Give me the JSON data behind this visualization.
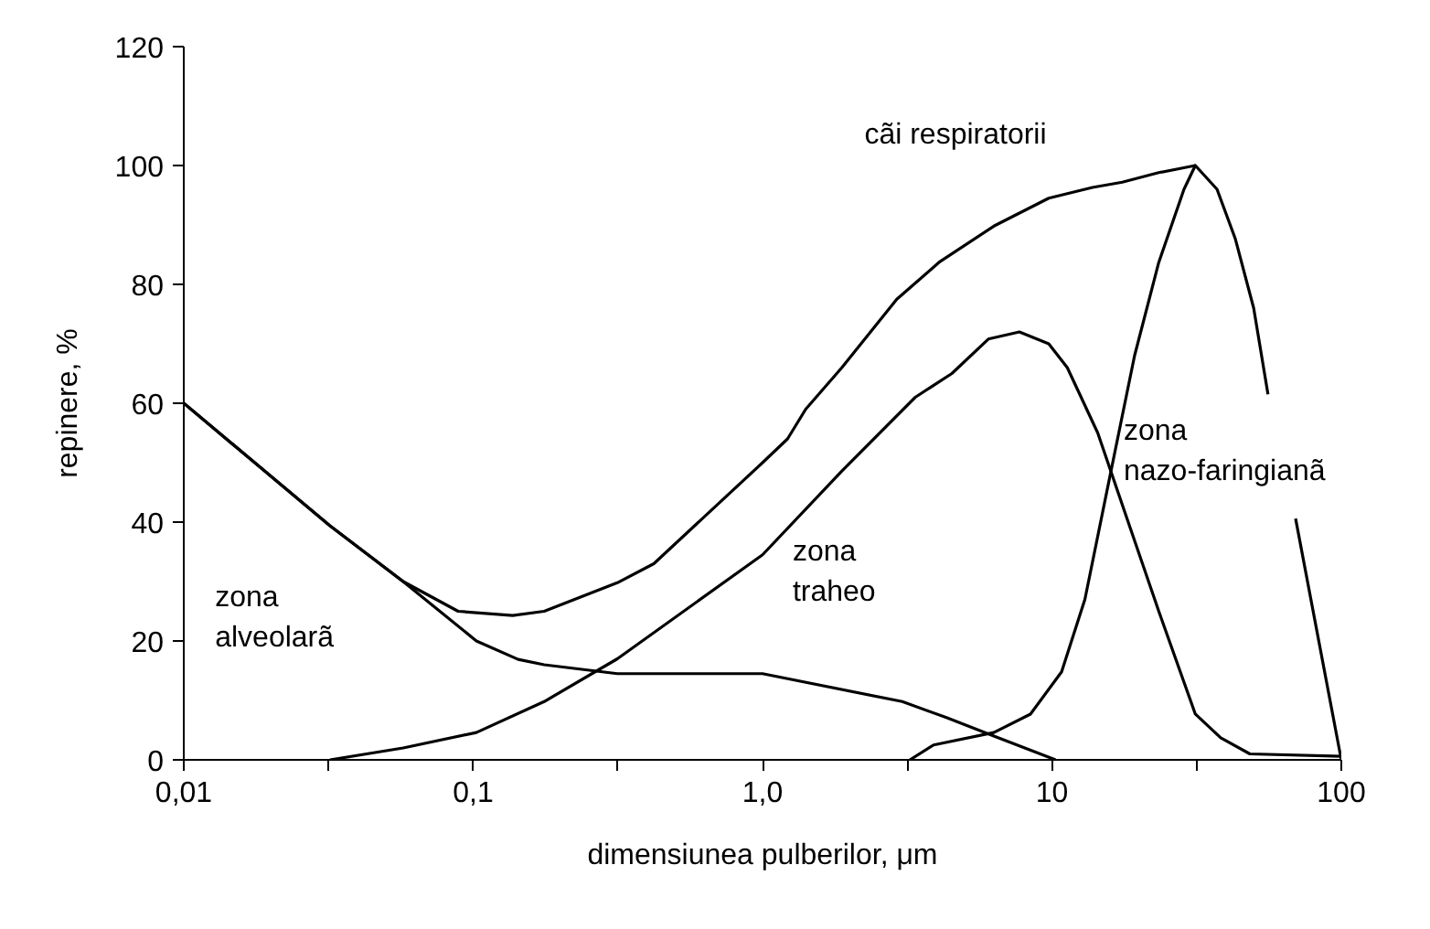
{
  "chart_data": {
    "type": "line",
    "xlabel": "dimensiunea pulberilor, μm",
    "ylabel": "repinere, %",
    "log": "x",
    "xlim": [
      0.01,
      100
    ],
    "ylim": [
      0,
      120
    ],
    "xticks": [
      {
        "value": 0.01,
        "label": "0,01"
      },
      {
        "value": 0.0316,
        "label": null
      },
      {
        "value": 0.1,
        "label": "0,1"
      },
      {
        "value": 0.316,
        "label": null
      },
      {
        "value": 1,
        "label": "1,0"
      },
      {
        "value": 3.16,
        "label": null
      },
      10,
      {
        "value": 31.6,
        "label": null
      },
      100
    ],
    "yticks": [
      0,
      20,
      40,
      60,
      80,
      100,
      120
    ],
    "grid": false,
    "legend": false,
    "marker": "none",
    "line_style": "solid",
    "series": [
      {
        "name": "cãi respiratorii",
        "color": "#000000",
        "x": [
          0.01,
          0.032,
          0.0573,
          0.0887,
          0.137,
          0.176,
          0.315,
          0.421,
          1.0,
          1.22,
          1.41,
          1.88,
          2.91,
          4.07,
          6.3,
          9.75,
          13.8,
          17.5,
          23.4,
          31.3
        ],
        "values": [
          60,
          39.4,
          30,
          25,
          24.3,
          25,
          29.8,
          33,
          50,
          54,
          59,
          66,
          77.5,
          83.7,
          89.8,
          94.5,
          96.3,
          97.2,
          98.8,
          100
        ]
      },
      {
        "name": "zona\nnazo-faringianã",
        "color": "#000000",
        "x": [
          3.23,
          3.9,
          6.3,
          8.43,
          10.8,
          13.0,
          16.0,
          19.3,
          23.4,
          28.6,
          31.3,
          37.2,
          43.0,
          49.8,
          55.8,
          62,
          69.5,
          100
        ],
        "values": [
          0,
          2.5,
          4.6,
          7.7,
          14.8,
          27,
          48.6,
          68,
          83.7,
          96,
          100,
          96,
          87.7,
          76,
          61.5,
          null,
          40.6,
          0
        ]
      },
      {
        "name": "zona\ntraheo",
        "color": "#000000",
        "x": [
          0.032,
          0.0573,
          0.1026,
          0.176,
          0.315,
          1.0,
          1.88,
          3.37,
          4.51,
          6.03,
          7.72,
          9.75,
          11.3,
          14.4,
          18.5,
          23.4,
          31.3,
          38.3,
          48.3,
          100
        ],
        "values": [
          0,
          2,
          4.6,
          9.8,
          17,
          34.5,
          48.6,
          61,
          65,
          70.8,
          72,
          70,
          66,
          55,
          39.5,
          25,
          7.7,
          3.7,
          1,
          0.6
        ]
      },
      {
        "name": "zona\nalveolarã",
        "color": "#000000",
        "x": [
          0.01,
          0.032,
          0.0573,
          0.1026,
          0.143,
          0.176,
          0.315,
          1.0,
          3.04,
          4.32,
          6.3,
          10.3
        ],
        "values": [
          60,
          39.4,
          30,
          20,
          16.9,
          16,
          14.5,
          14.5,
          9.8,
          7.1,
          4,
          0
        ]
      }
    ]
  }
}
